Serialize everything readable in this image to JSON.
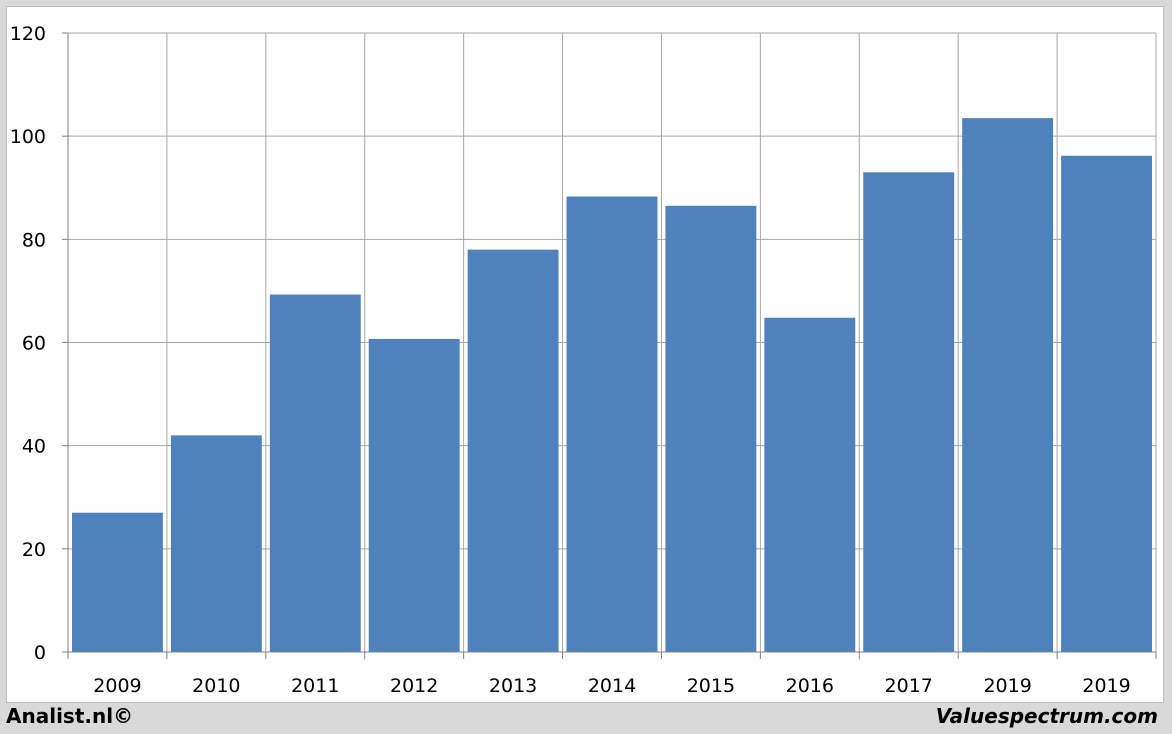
{
  "chart_data": {
    "type": "bar",
    "categories": [
      "2009",
      "2010",
      "2011",
      "2012",
      "2013",
      "2014",
      "2015",
      "2016",
      "2017",
      "2019",
      "2019"
    ],
    "values": [
      27,
      42,
      69.3,
      60.7,
      78,
      88.3,
      86.5,
      64.8,
      93,
      103.5,
      96.2
    ],
    "ylim": [
      0,
      120
    ],
    "yticks": [
      0,
      20,
      40,
      60,
      80,
      100,
      120
    ],
    "grid": true,
    "bar_color": "#4f81bd",
    "grid_color": "#a6a6a6",
    "title": "",
    "xlabel": "",
    "ylabel": ""
  },
  "footer": {
    "left_text": "Analist.nl©",
    "right_text": "Valuespectrum.com"
  }
}
